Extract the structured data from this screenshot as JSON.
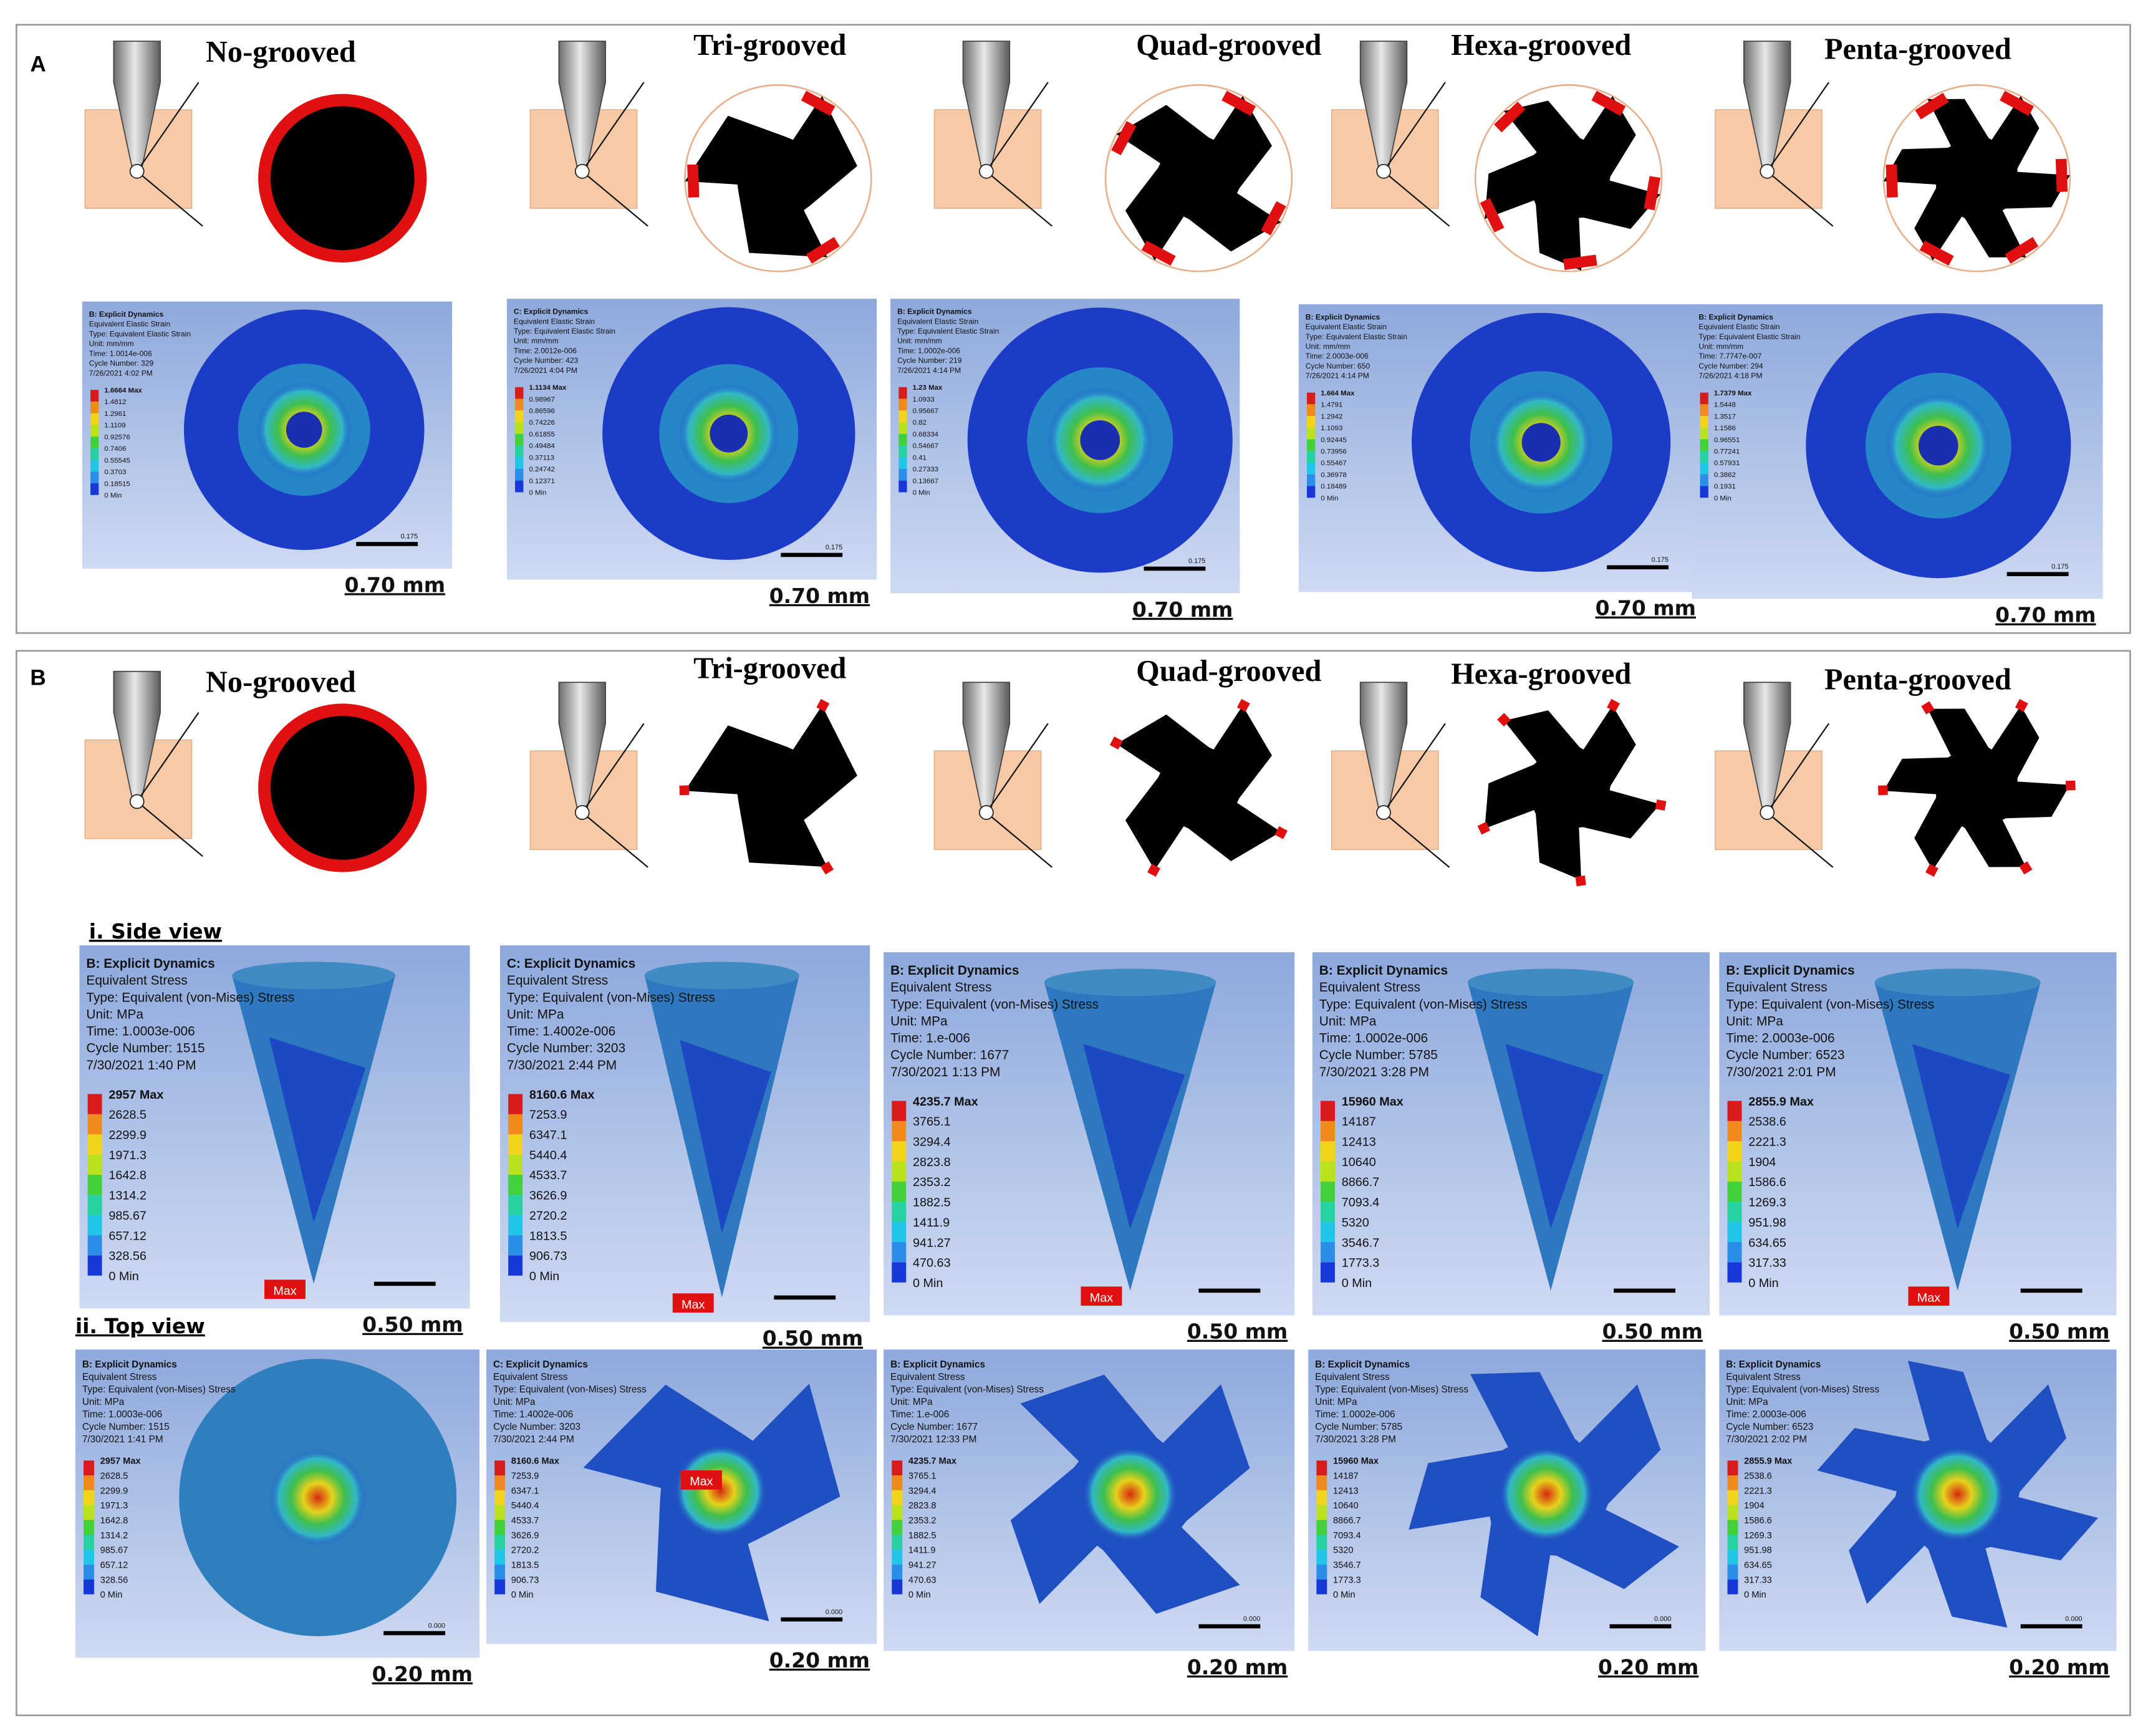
{
  "panel_a": {
    "label": "A",
    "columns": [
      {
        "title": "No-grooved",
        "sim": {
          "header": [
            "B: Explicit Dynamics",
            "Equivalent Elastic Strain",
            "Type: Equivalent Elastic Strain",
            "Unit: mm/mm",
            "Time: 1.0014e-006",
            "Cycle Number: 329",
            "7/26/2021 4:02 PM"
          ],
          "legend": [
            "1.6664 Max",
            "1.4812",
            "1.2961",
            "1.1109",
            "0.92576",
            "0.7406",
            "0.55545",
            "0.3703",
            "0.18515",
            "0 Min"
          ],
          "scale_tick": "0.175",
          "scale": "0.70 mm"
        }
      },
      {
        "title": "Tri-grooved",
        "sim": {
          "header": [
            "C: Explicit Dynamics",
            "Equivalent Elastic Strain",
            "Type: Equivalent Elastic Strain",
            "Unit: mm/mm",
            "Time: 2.0012e-006",
            "Cycle Number: 423",
            "7/26/2021 4:04 PM"
          ],
          "legend": [
            "1.1134 Max",
            "0.98967",
            "0.86596",
            "0.74226",
            "0.61855",
            "0.49484",
            "0.37113",
            "0.24742",
            "0.12371",
            "0 Min"
          ],
          "scale_tick": "0.175",
          "scale": "0.70 mm"
        }
      },
      {
        "title": "Quad-grooved",
        "sim": {
          "header": [
            "B: Explicit Dynamics",
            "Equivalent Elastic Strain",
            "Type: Equivalent Elastic Strain",
            "Unit: mm/mm",
            "Time: 1.0002e-006",
            "Cycle Number: 219",
            "7/26/2021 4:14 PM"
          ],
          "legend": [
            "1.23 Max",
            "1.0933",
            "0.95667",
            "0.82",
            "0.68334",
            "0.54667",
            "0.41",
            "0.27333",
            "0.13667",
            "0 Min"
          ],
          "scale_tick": "0.175",
          "scale": "0.70 mm"
        }
      },
      {
        "title": "Hexa-grooved",
        "sim": {
          "header": [
            "B: Explicit Dynamics",
            "Equivalent Elastic Strain",
            "Type: Equivalent Elastic Strain",
            "Unit: mm/mm",
            "Time: 2.0003e-006",
            "Cycle Number: 650",
            "7/26/2021 4:14 PM"
          ],
          "legend": [
            "1.664 Max",
            "1.4791",
            "1.2942",
            "1.1093",
            "0.92445",
            "0.73956",
            "0.55467",
            "0.36978",
            "0.18489",
            "0 Min"
          ],
          "scale_tick": "0.175",
          "scale": "0.70 mm"
        }
      },
      {
        "title": "Penta-grooved",
        "sim": {
          "header": [
            "B: Explicit Dynamics",
            "Equivalent Elastic Strain",
            "Type: Equivalent Elastic Strain",
            "Unit: mm/mm",
            "Time: 7.7747e-007",
            "Cycle Number: 294",
            "7/26/2021 4:18 PM"
          ],
          "legend": [
            "1.7379 Max",
            "1.5448",
            "1.3517",
            "1.1586",
            "0.96551",
            "0.77241",
            "0.57931",
            "0.3862",
            "0.1931",
            "0 Min"
          ],
          "scale_tick": "0.175",
          "scale": "0.70 mm"
        }
      }
    ]
  },
  "panel_b": {
    "label": "B",
    "side_view_label": "i. Side view",
    "top_view_label": "ii. Top view",
    "columns": [
      {
        "title": "No-grooved",
        "side": {
          "header": [
            "B: Explicit Dynamics",
            "Equivalent Stress",
            "Type: Equivalent (von-Mises) Stress",
            "Unit: MPa",
            "Time: 1.0003e-006",
            "Cycle Number: 1515",
            "7/30/2021 1:40 PM"
          ],
          "legend": [
            "2957 Max",
            "2628.5",
            "2299.9",
            "1971.3",
            "1642.8",
            "1314.2",
            "985.67",
            "657.12",
            "328.56",
            "0 Min"
          ],
          "max_tag": "Max",
          "scale": "0.50 mm"
        },
        "top": {
          "header": [
            "B: Explicit Dynamics",
            "Equivalent Stress",
            "Type: Equivalent (von-Mises) Stress",
            "Unit: MPa",
            "Time: 1.0003e-006",
            "Cycle Number: 1515",
            "7/30/2021 1:41 PM"
          ],
          "legend": [
            "2957 Max",
            "2628.5",
            "2299.9",
            "1971.3",
            "1642.8",
            "1314.2",
            "985.67",
            "657.12",
            "328.56",
            "0 Min"
          ],
          "scale_tick": "0.000",
          "scale": "0.20 mm"
        }
      },
      {
        "title": "Tri-grooved",
        "side": {
          "header": [
            "C: Explicit Dynamics",
            "Equivalent Stress",
            "Type: Equivalent (von-Mises) Stress",
            "Unit: MPa",
            "Time: 1.4002e-006",
            "Cycle Number: 3203",
            "7/30/2021 2:44 PM"
          ],
          "legend": [
            "8160.6 Max",
            "7253.9",
            "6347.1",
            "5440.4",
            "4533.7",
            "3626.9",
            "2720.2",
            "1813.5",
            "906.73",
            "0 Min"
          ],
          "max_tag": "Max",
          "scale": "0.50 mm"
        },
        "top": {
          "header": [
            "C: Explicit Dynamics",
            "Equivalent Stress",
            "Type: Equivalent (von-Mises) Stress",
            "Unit: MPa",
            "Time: 1.4002e-006",
            "Cycle Number: 3203",
            "7/30/2021 2:44 PM"
          ],
          "legend": [
            "8160.6 Max",
            "7253.9",
            "6347.1",
            "5440.4",
            "4533.7",
            "3626.9",
            "2720.2",
            "1813.5",
            "906.73",
            "0 Min"
          ],
          "max_tag": "Max",
          "scale_tick": "0.000",
          "scale": "0.20 mm"
        }
      },
      {
        "title": "Quad-grooved",
        "side": {
          "header": [
            "B: Explicit Dynamics",
            "Equivalent Stress",
            "Type: Equivalent (von-Mises) Stress",
            "Unit: MPa",
            "Time: 1.e-006",
            "Cycle Number: 1677",
            "7/30/2021 1:13 PM"
          ],
          "legend": [
            "4235.7 Max",
            "3765.1",
            "3294.4",
            "2823.8",
            "2353.2",
            "1882.5",
            "1411.9",
            "941.27",
            "470.63",
            "0 Min"
          ],
          "max_tag": "Max",
          "scale": "0.50 mm"
        },
        "top": {
          "header": [
            "B: Explicit Dynamics",
            "Equivalent Stress",
            "Type: Equivalent (von-Mises) Stress",
            "Unit: MPa",
            "Time: 1.e-006",
            "Cycle Number: 1677",
            "7/30/2021 12:33 PM"
          ],
          "legend": [
            "4235.7 Max",
            "3765.1",
            "3294.4",
            "2823.8",
            "2353.2",
            "1882.5",
            "1411.9",
            "941.27",
            "470.63",
            "0 Min"
          ],
          "scale_tick": "0.000",
          "scale": "0.20 mm"
        }
      },
      {
        "title": "Hexa-grooved",
        "side": {
          "header": [
            "B: Explicit Dynamics",
            "Equivalent Stress",
            "Type: Equivalent (von-Mises) Stress",
            "Unit: MPa",
            "Time: 1.0002e-006",
            "Cycle Number: 5785",
            "7/30/2021 3:28 PM"
          ],
          "legend": [
            "15960 Max",
            "14187",
            "12413",
            "10640",
            "8866.7",
            "7093.4",
            "5320",
            "3546.7",
            "1773.3",
            "0 Min"
          ],
          "scale": "0.50 mm"
        },
        "top": {
          "header": [
            "B: Explicit Dynamics",
            "Equivalent Stress",
            "Type: Equivalent (von-Mises) Stress",
            "Unit: MPa",
            "Time: 1.0002e-006",
            "Cycle Number: 5785",
            "7/30/2021 3:28 PM"
          ],
          "legend": [
            "15960 Max",
            "14187",
            "12413",
            "10640",
            "8866.7",
            "7093.4",
            "5320",
            "3546.7",
            "1773.3",
            "0 Min"
          ],
          "scale_tick": "0.000",
          "scale": "0.20 mm"
        }
      },
      {
        "title": "Penta-grooved",
        "side": {
          "header": [
            "B: Explicit Dynamics",
            "Equivalent Stress",
            "Type: Equivalent (von-Mises) Stress",
            "Unit: MPa",
            "Time: 2.0003e-006",
            "Cycle Number: 6523",
            "7/30/2021 2:01 PM"
          ],
          "legend": [
            "2855.9 Max",
            "2538.6",
            "2221.3",
            "1904",
            "1586.6",
            "1269.3",
            "951.98",
            "634.65",
            "317.33",
            "0 Min"
          ],
          "max_tag": "Max",
          "scale": "0.50 mm"
        },
        "top": {
          "header": [
            "B: Explicit Dynamics",
            "Equivalent Stress",
            "Type: Equivalent (von-Mises) Stress",
            "Unit: MPa",
            "Time: 2.0003e-006",
            "Cycle Number: 6523",
            "7/30/2021 2:02 PM"
          ],
          "legend": [
            "2855.9 Max",
            "2538.6",
            "2221.3",
            "1904",
            "1586.6",
            "1269.3",
            "951.98",
            "634.65",
            "317.33",
            "0 Min"
          ],
          "scale_tick": "0.000",
          "scale": "0.20 mm"
        }
      }
    ]
  }
}
